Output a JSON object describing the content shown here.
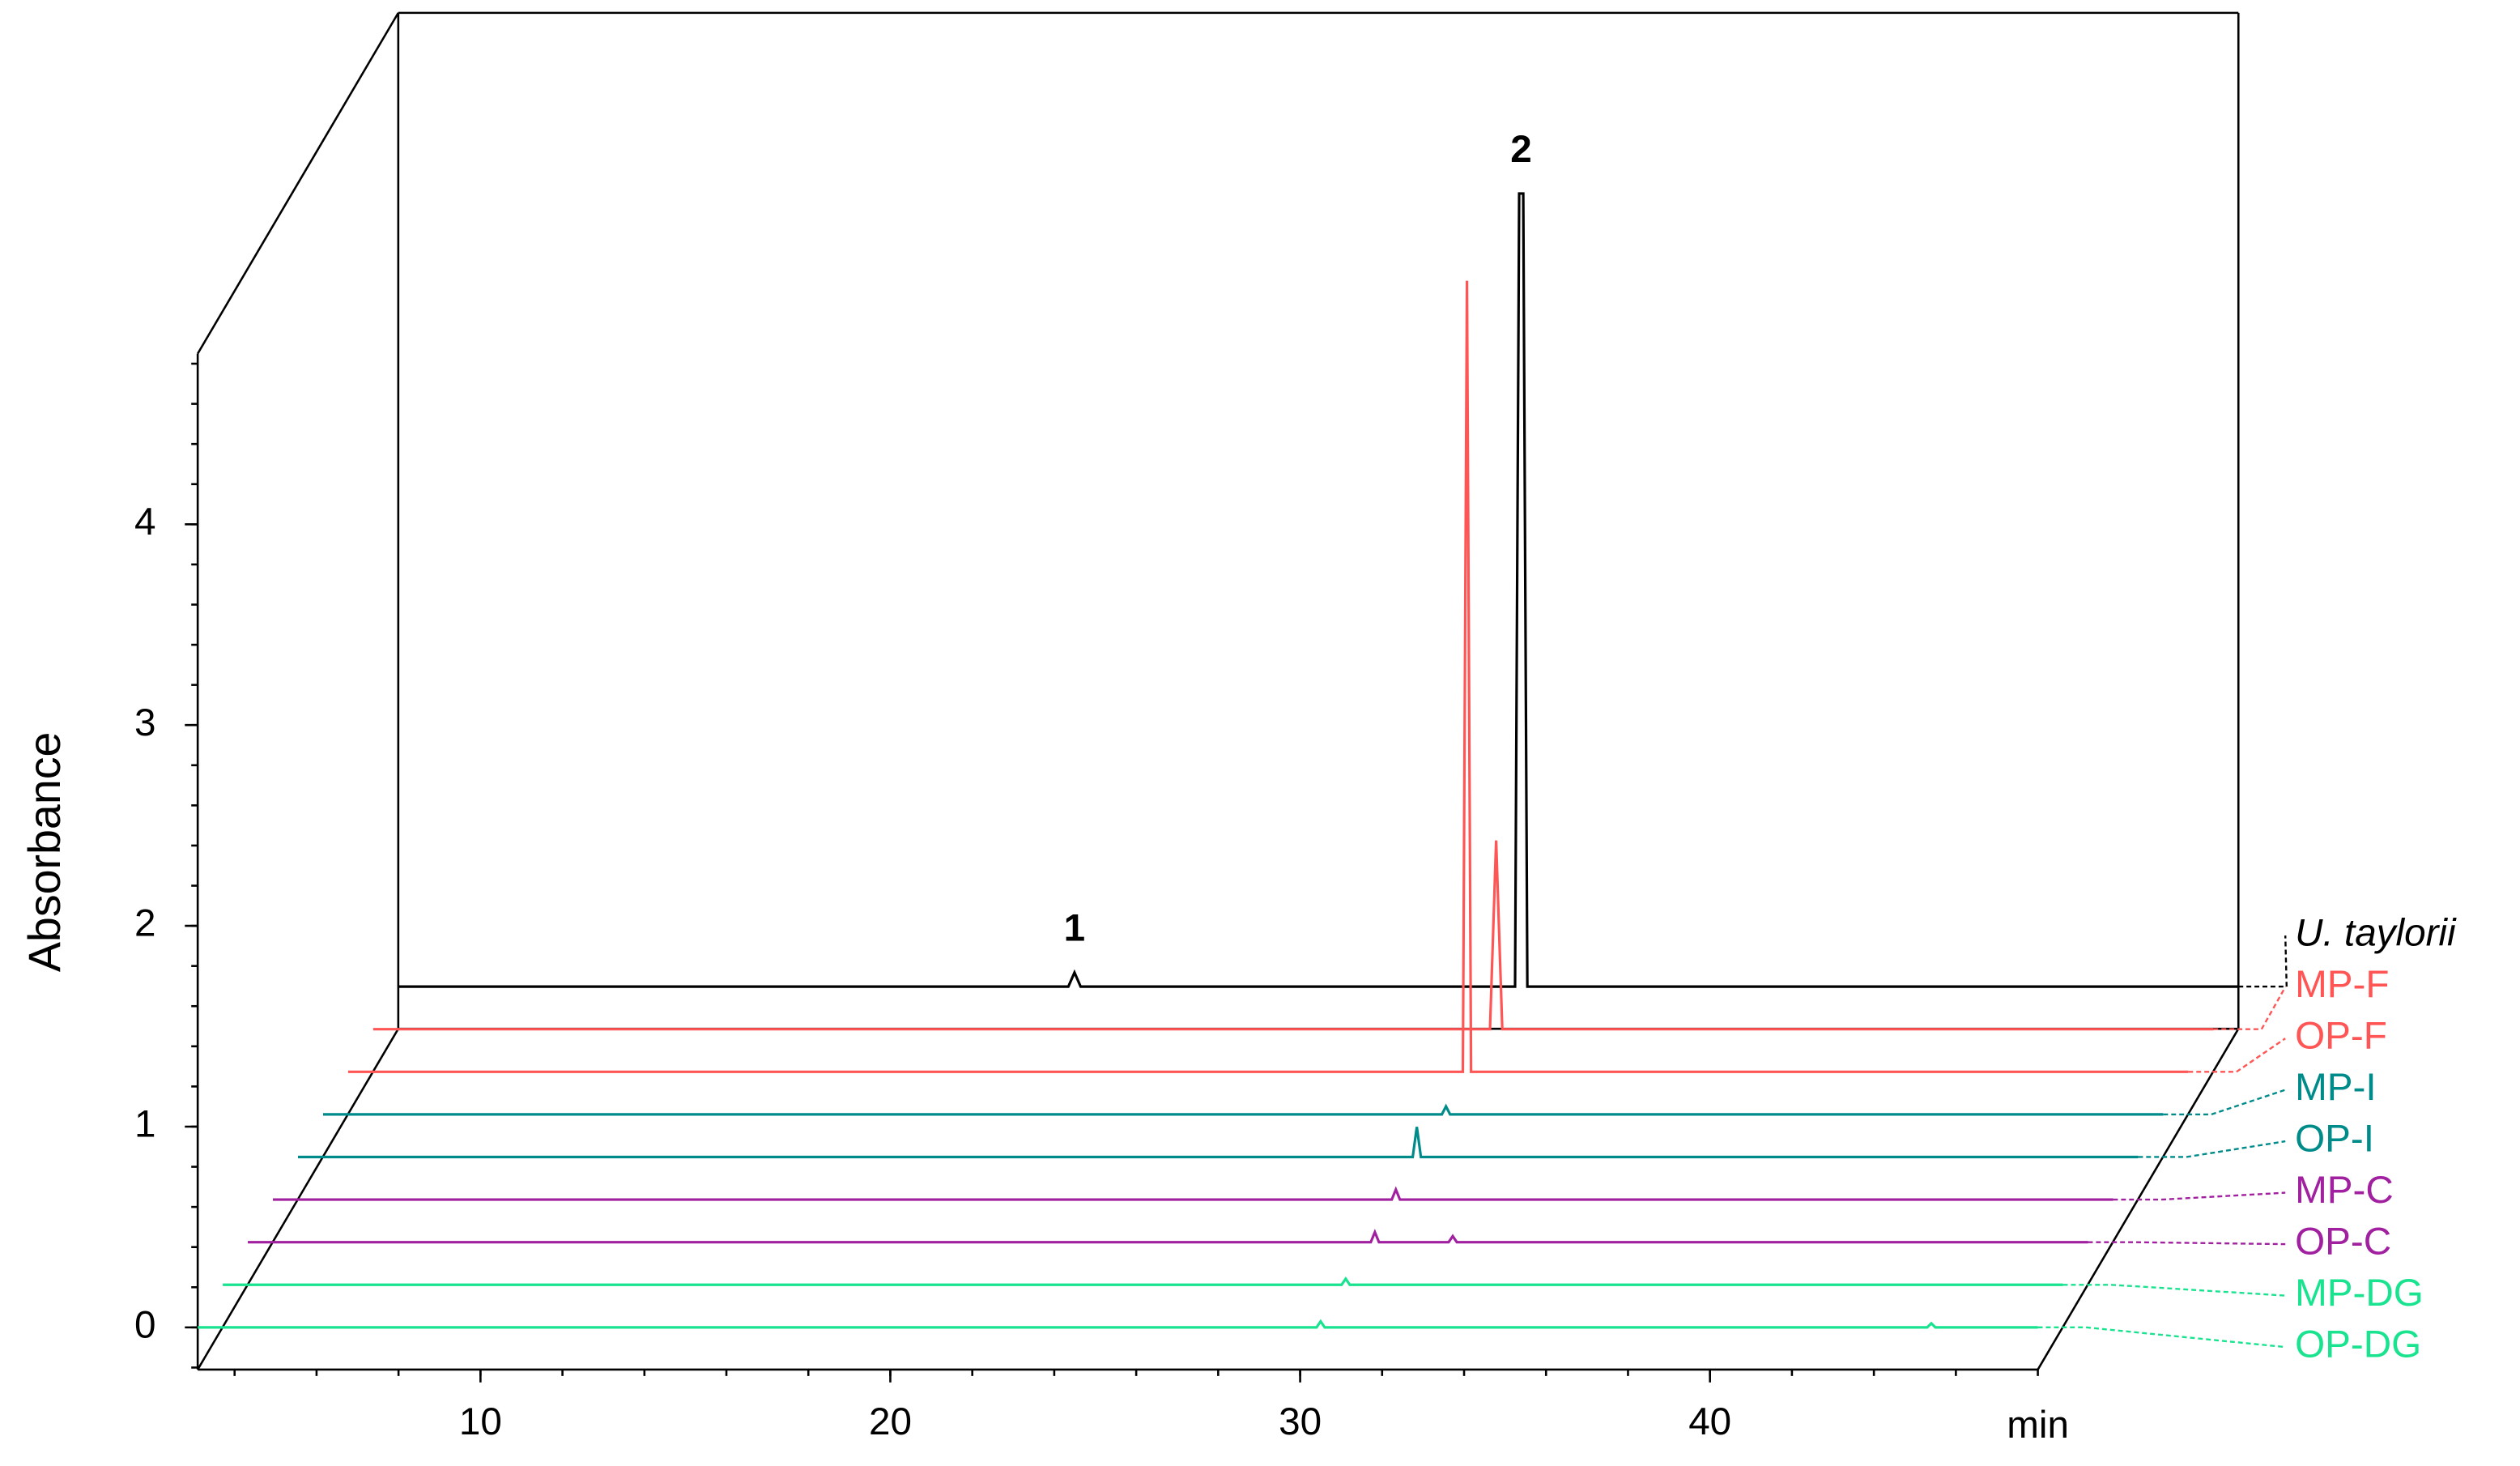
{
  "chart_data": {
    "type": "line",
    "xlabel": "min",
    "ylabel": "Absorbance",
    "xlim": [
      3.1,
      48
    ],
    "xticks": [
      10,
      20,
      30,
      40
    ],
    "ylim": [
      -0.21,
      4.85
    ],
    "yticks": [
      0,
      1,
      2,
      3,
      4
    ],
    "annotations": [
      {
        "text": "1",
        "x": 19.6
      },
      {
        "text": "2",
        "x": 30.5
      }
    ],
    "series": [
      {
        "name": "U. taylorii",
        "color": "#000000",
        "x": [
          3.1,
          19.45,
          19.6,
          19.75,
          30.35,
          30.45,
          30.55,
          30.65,
          48
        ],
        "values": [
          0,
          0,
          0.07,
          0,
          0,
          3.95,
          3.95,
          0,
          0
        ]
      },
      {
        "name": "MP-F",
        "color": "#ff5555",
        "x": [
          3.1,
          30.35,
          30.5,
          30.65,
          48
        ],
        "values": [
          0,
          0,
          0.94,
          0,
          0
        ]
      },
      {
        "name": "OP-F",
        "color": "#ff5555",
        "x": [
          3.1,
          30.3,
          30.4,
          30.5,
          48
        ],
        "values": [
          0,
          0,
          3.94,
          0,
          0
        ]
      },
      {
        "name": "MP-I",
        "color": "#008b8b",
        "x": [
          3.1,
          30.4,
          30.5,
          30.6,
          48
        ],
        "values": [
          0,
          0,
          0.04,
          0,
          0
        ]
      },
      {
        "name": "OP-I",
        "color": "#008b8b",
        "x": [
          3.1,
          30.3,
          30.4,
          30.5,
          48
        ],
        "values": [
          0,
          0,
          0.15,
          0,
          0
        ]
      },
      {
        "name": "MP-C",
        "color": "#a0209f",
        "x": [
          3.1,
          30.4,
          30.5,
          30.6,
          48
        ],
        "values": [
          0,
          0,
          0.05,
          0,
          0
        ]
      },
      {
        "name": "OP-C",
        "color": "#a0209f",
        "x": [
          3.1,
          30.5,
          30.6,
          30.7,
          32.4,
          32.5,
          32.6,
          48
        ],
        "values": [
          0,
          0,
          0.05,
          0,
          0,
          0.03,
          0,
          0
        ]
      },
      {
        "name": "MP-DG",
        "color": "#19e38f",
        "x": [
          3.1,
          30.4,
          30.5,
          30.6,
          48
        ],
        "values": [
          0,
          0,
          0.03,
          0,
          0
        ]
      },
      {
        "name": "OP-DG",
        "color": "#19e38f",
        "x": [
          3.1,
          30.4,
          30.5,
          30.6,
          45.3,
          45.4,
          45.5,
          48
        ],
        "values": [
          0,
          0,
          0.03,
          0,
          0,
          0.02,
          0,
          0
        ]
      }
    ]
  }
}
